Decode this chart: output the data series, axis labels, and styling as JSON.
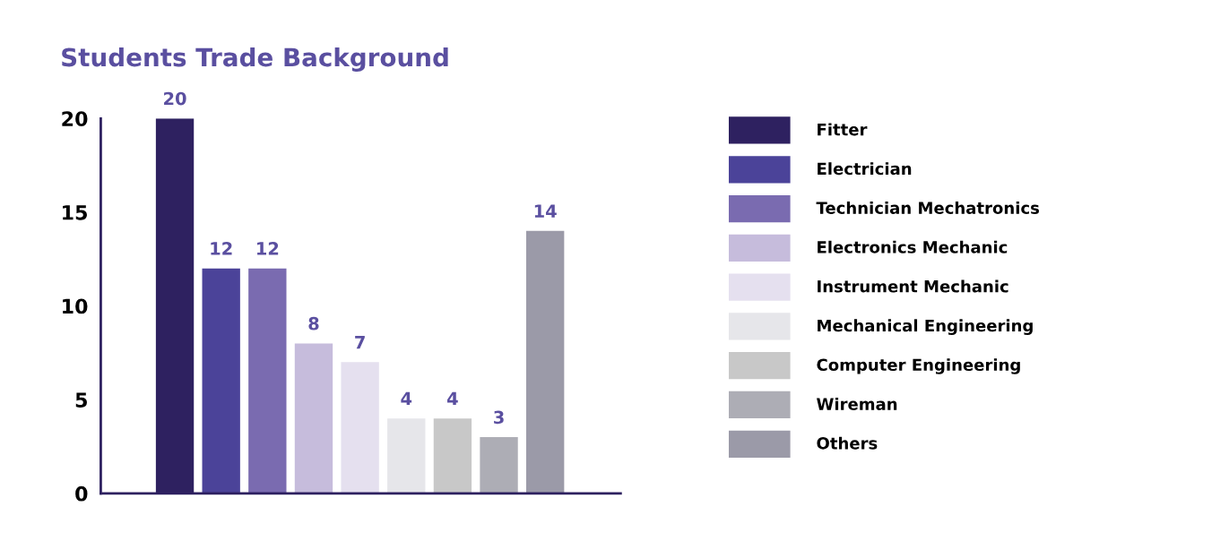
{
  "chart_data": {
    "type": "bar",
    "title": "Students Trade Background",
    "categories": [
      null,
      null,
      null,
      null,
      null,
      null,
      null,
      null,
      null
    ],
    "series": [
      {
        "name": "Fitter",
        "color": "#2e2160",
        "values": [
          20,
          null,
          null,
          null,
          null,
          null,
          null,
          null,
          null
        ]
      },
      {
        "name": "Electrician",
        "color": "#4b4399",
        "values": [
          null,
          12,
          null,
          null,
          null,
          null,
          null,
          null,
          null
        ]
      },
      {
        "name": "Technician Mechatronics",
        "color": "#7a6bb0",
        "values": [
          null,
          null,
          12,
          null,
          null,
          null,
          null,
          null,
          null
        ]
      },
      {
        "name": "Electronics Mechanic",
        "color": "#c6bcdc",
        "values": [
          null,
          null,
          null,
          8,
          null,
          null,
          null,
          null,
          null
        ]
      },
      {
        "name": "Instrument Mechanic",
        "color": "#e5e0ef",
        "values": [
          null,
          null,
          null,
          null,
          7,
          null,
          null,
          null,
          null
        ]
      },
      {
        "name": "Mechanical Engineering",
        "color": "#e6e6ea",
        "values": [
          null,
          null,
          null,
          null,
          null,
          4,
          null,
          null,
          null
        ]
      },
      {
        "name": "Computer Engineering",
        "color": "#c8c8c8",
        "values": [
          null,
          null,
          null,
          null,
          null,
          null,
          4,
          null,
          null
        ]
      },
      {
        "name": "Wireman",
        "color": "#adadb5",
        "values": [
          null,
          null,
          null,
          null,
          null,
          null,
          null,
          3,
          null
        ]
      },
      {
        "name": "Others",
        "color": "#9b9aa8",
        "values": [
          null,
          null,
          null,
          null,
          null,
          null,
          null,
          null,
          14
        ]
      }
    ],
    "ylim": [
      0,
      20
    ],
    "yticks": [
      0,
      5,
      10,
      15,
      20
    ],
    "stacked": true,
    "data_labels": true,
    "tick_labels": "y",
    "legend": "right",
    "grid": false
  }
}
